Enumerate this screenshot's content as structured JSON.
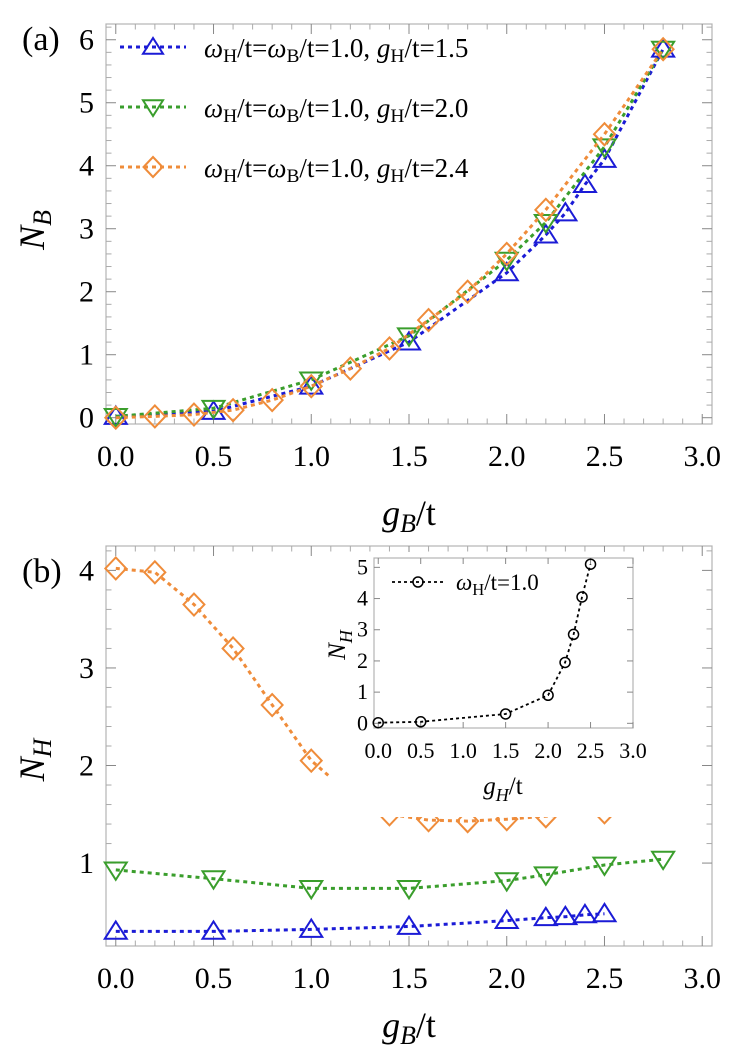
{
  "colors": {
    "blue": "#1b1bd6",
    "green": "#3a9e2c",
    "orange": "#ef8c3a",
    "black": "#000000",
    "frame": "#b3b3b3"
  },
  "chart_data": [
    {
      "panel_label": "(a)",
      "type": "line",
      "xlabel": "g_B/t",
      "ylabel": "N_B",
      "xlim": [
        -0.05,
        3.05
      ],
      "ylim": [
        -0.1,
        6.25
      ],
      "xticks": [
        "0.0",
        "0.5",
        "1.0",
        "1.5",
        "2.0",
        "2.5",
        "3.0"
      ],
      "yticks": [
        "0",
        "1",
        "2",
        "3",
        "4",
        "5",
        "6"
      ],
      "legend_position": "top-left",
      "series": [
        {
          "name": "ωH/t=ωB/t=1.0, gH/t=1.5",
          "name_parts": [
            "ω",
            "H",
            "/t=",
            "ω",
            "B",
            "/t=1.0, ",
            "g",
            "H",
            "/t=1.5"
          ],
          "color": "blue",
          "marker": "triangle-up",
          "x": [
            0.0,
            0.5,
            1.0,
            1.5,
            2.0,
            2.2,
            2.3,
            2.4,
            2.5,
            2.8
          ],
          "y": [
            0.02,
            0.1,
            0.5,
            1.2,
            2.3,
            2.9,
            3.25,
            3.7,
            4.1,
            5.85
          ]
        },
        {
          "name": "ωH/t=ωB/t=1.0, gH/t=2.0",
          "name_parts": [
            "ω",
            "H",
            "/t=",
            "ω",
            "B",
            "/t=1.0, ",
            "g",
            "H",
            "/t=2.0"
          ],
          "color": "green",
          "marker": "triangle-down",
          "x": [
            0.0,
            0.5,
            1.0,
            1.5,
            2.0,
            2.2,
            2.5,
            2.8
          ],
          "y": [
            0.02,
            0.15,
            0.6,
            1.3,
            2.5,
            3.1,
            4.3,
            5.85
          ]
        },
        {
          "name": "ωH/t=ωB/t=1.0, gH/t=2.4",
          "name_parts": [
            "ω",
            "H",
            "/t=",
            "ω",
            "B",
            "/t=1.0, ",
            "g",
            "H",
            "/t=2.4"
          ],
          "color": "orange",
          "marker": "diamond",
          "x": [
            0.0,
            0.2,
            0.4,
            0.6,
            0.8,
            1.0,
            1.2,
            1.4,
            1.6,
            1.8,
            2.0,
            2.2,
            2.5,
            2.8
          ],
          "y": [
            0.0,
            0.02,
            0.05,
            0.12,
            0.28,
            0.5,
            0.78,
            1.1,
            1.55,
            2.0,
            2.6,
            3.3,
            4.5,
            5.85
          ]
        }
      ]
    },
    {
      "panel_label": "(b)",
      "type": "line",
      "xlabel": "g_B/t",
      "ylabel": "N_H",
      "xlim": [
        -0.05,
        3.05
      ],
      "ylim": [
        0.15,
        4.25
      ],
      "xticks": [
        "0.0",
        "0.5",
        "1.0",
        "1.5",
        "2.0",
        "2.5",
        "3.0"
      ],
      "yticks": [
        "1",
        "2",
        "3",
        "4"
      ],
      "series": [
        {
          "color": "blue",
          "marker": "triangle-up",
          "x": [
            0.0,
            0.5,
            1.0,
            1.5,
            2.0,
            2.2,
            2.3,
            2.4,
            2.5
          ],
          "y": [
            0.3,
            0.3,
            0.32,
            0.35,
            0.41,
            0.44,
            0.45,
            0.47,
            0.48
          ]
        },
        {
          "color": "green",
          "marker": "triangle-down",
          "x": [
            0.0,
            0.5,
            1.0,
            1.5,
            2.0,
            2.2,
            2.5,
            2.8
          ],
          "y": [
            0.93,
            0.84,
            0.74,
            0.74,
            0.82,
            0.88,
            0.98,
            1.04
          ]
        },
        {
          "color": "orange",
          "marker": "diamond",
          "x": [
            0.0,
            0.2,
            0.4,
            0.6,
            0.8,
            1.0,
            1.2,
            1.4,
            1.6,
            1.8,
            2.0,
            2.2,
            2.5,
            2.8
          ],
          "y": [
            4.02,
            3.98,
            3.65,
            3.2,
            2.62,
            2.05,
            1.7,
            1.5,
            1.44,
            1.43,
            1.45,
            1.48,
            1.52,
            1.65
          ]
        }
      ]
    },
    {
      "panel_label": "inset",
      "type": "line",
      "xlabel": "g_H/t",
      "ylabel": "N_H",
      "xlim": [
        -0.05,
        3.0
      ],
      "ylim": [
        -0.15,
        5.3
      ],
      "xticks": [
        "0.0",
        "0.5",
        "1.0",
        "1.5",
        "2.0",
        "2.5",
        "3.0"
      ],
      "yticks": [
        "0",
        "1",
        "2",
        "3",
        "4",
        "5"
      ],
      "legend_position": "top-left",
      "series": [
        {
          "name": "ωH/t=1.0",
          "name_parts": [
            "ω",
            "H",
            "/t=1.0"
          ],
          "color": "black",
          "marker": "circle",
          "x": [
            0.0,
            0.5,
            1.5,
            2.0,
            2.2,
            2.3,
            2.4,
            2.5
          ],
          "y": [
            0.02,
            0.05,
            0.3,
            0.9,
            1.95,
            2.85,
            4.05,
            5.1
          ]
        }
      ]
    }
  ]
}
